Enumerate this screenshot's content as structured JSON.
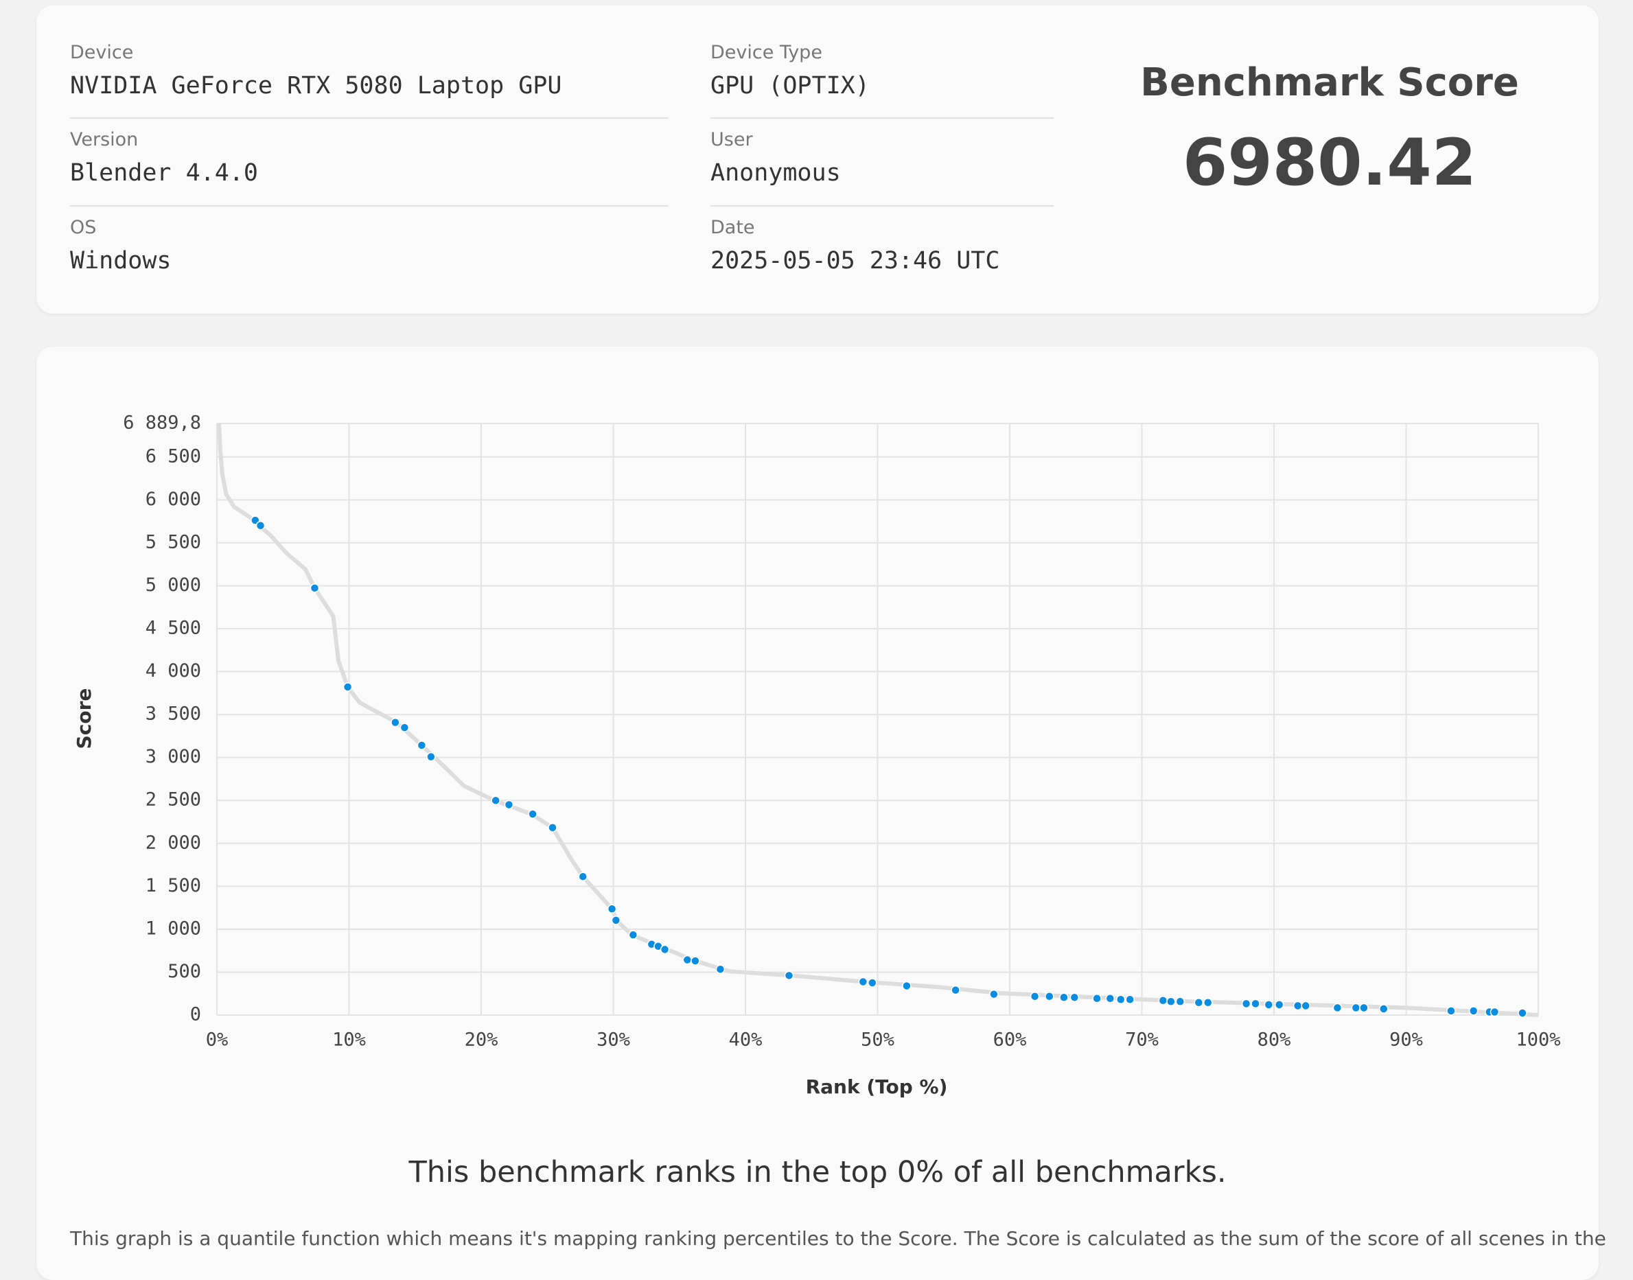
{
  "info": {
    "fields": [
      {
        "label": "Device",
        "value": "NVIDIA GeForce RTX 5080 Laptop GPU"
      },
      {
        "label": "Version",
        "value": "Blender 4.4.0"
      },
      {
        "label": "OS",
        "value": "Windows"
      },
      {
        "label": "Device Type",
        "value": "GPU (OPTIX)"
      },
      {
        "label": "User",
        "value": "Anonymous"
      },
      {
        "label": "Date",
        "value": "2025-05-05 23:46 UTC"
      }
    ],
    "score_title": "Benchmark Score",
    "score": 6980.42
  },
  "chart_data": {
    "type": "line",
    "x_label": "Rank (Top %)",
    "y_label": "Score",
    "xlim": [
      0,
      100
    ],
    "ylim": [
      0,
      6889.8
    ],
    "grid": true,
    "xticks": [
      {
        "value": 0,
        "label": "0%"
      },
      {
        "value": 10,
        "label": "10%"
      },
      {
        "value": 20,
        "label": "20%"
      },
      {
        "value": 30,
        "label": "30%"
      },
      {
        "value": 40,
        "label": "40%"
      },
      {
        "value": 50,
        "label": "50%"
      },
      {
        "value": 60,
        "label": "60%"
      },
      {
        "value": 70,
        "label": "70%"
      },
      {
        "value": 80,
        "label": "80%"
      },
      {
        "value": 90,
        "label": "90%"
      },
      {
        "value": 100,
        "label": "100%"
      }
    ],
    "yticks": [
      0,
      {
        "value": 500,
        "label": "500"
      },
      {
        "value": 1000,
        "label": "1 000"
      },
      {
        "value": 1500,
        "label": "1 500"
      },
      {
        "value": 2000,
        "label": "2 000"
      },
      {
        "value": 2500,
        "label": "2 500"
      },
      {
        "value": 3000,
        "label": "3 000"
      },
      {
        "value": 3500,
        "label": "3 500"
      },
      {
        "value": 4000,
        "label": "4 000"
      },
      {
        "value": 4500,
        "label": "4 500"
      },
      {
        "value": 5000,
        "label": "5 000"
      },
      {
        "value": 5500,
        "label": "5 500"
      },
      {
        "value": 6000,
        "label": "6 000"
      },
      {
        "value": 6500,
        "label": "6 500"
      },
      {
        "value": 6889.8,
        "label": "6 889,8"
      }
    ],
    "series": [
      {
        "type": "line",
        "color": "#dddddd",
        "x": [
          0.16,
          0.24,
          0.4,
          0.7,
          1.3,
          2.5,
          4.1,
          5.3,
          6.7,
          7.4,
          8.8,
          9.2,
          9.9,
          10.8,
          13.6,
          15.5,
          17.5,
          18.7,
          21.0,
          23.8,
          25.4,
          26.8,
          27.7,
          29.9,
          30.3,
          31.4,
          33.9,
          36.2,
          38.8,
          43.5,
          49,
          54.5,
          59.3,
          66.4,
          73.8,
          82.1,
          90,
          100
        ],
        "values": [
          6890,
          6610,
          6307,
          6065,
          5920,
          5798,
          5580,
          5374,
          5192,
          4973,
          4646,
          4124,
          3821,
          3639,
          3408,
          3142,
          2851,
          2669,
          2499,
          2341,
          2183,
          1820,
          1613,
          1237,
          1092,
          934,
          776,
          631,
          509,
          461,
          388,
          328,
          255,
          206,
          158,
          121,
          85,
          0
        ]
      },
      {
        "type": "scatter",
        "color": "#0a8ce0",
        "x": [
          2.9,
          3.3,
          7.4,
          9.9,
          13.5,
          14.2,
          15.5,
          16.2,
          21.1,
          22.1,
          23.9,
          25.4,
          27.7,
          29.9,
          30.2,
          31.5,
          32.9,
          33.4,
          33.9,
          35.6,
          36.2,
          38.1,
          43.3,
          48.9,
          49.6,
          52.2,
          55.9,
          58.8,
          61.9,
          63,
          64.1,
          64.9,
          66.6,
          67.6,
          68.4,
          69.1,
          71.6,
          72.2,
          72.9,
          74.3,
          75,
          77.9,
          78.6,
          79.6,
          80.4,
          81.8,
          82.4,
          84.8,
          86.2,
          86.8,
          88.3,
          93.4,
          95.1,
          96.3,
          96.7,
          98.8
        ],
        "values": [
          5762,
          5701,
          4973,
          3821,
          3408,
          3348,
          3142,
          3008,
          2499,
          2450,
          2341,
          2183,
          1613,
          1237,
          1104,
          934,
          825,
          801,
          764,
          643,
          631,
          534,
          461,
          388,
          376,
          340,
          291,
          243,
          218,
          218,
          206,
          206,
          194,
          194,
          182,
          182,
          170,
          158,
          158,
          146,
          146,
          133,
          133,
          121,
          121,
          109,
          109,
          85,
          85,
          85,
          73,
          49,
          49,
          36,
          36,
          24
        ]
      }
    ]
  },
  "summary": "This benchmark ranks in the top 0% of all benchmarks.",
  "description": "This graph is a quantile function which means it's mapping ranking percentiles to the Score. The Score is calculated as the sum of the score of all scenes in the"
}
